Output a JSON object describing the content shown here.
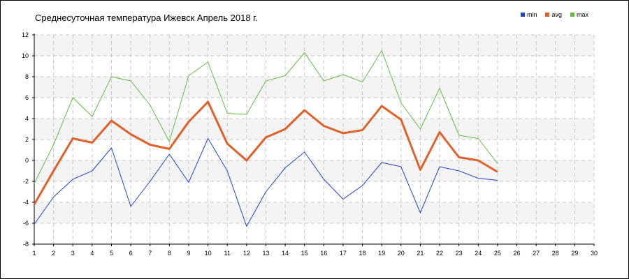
{
  "chart_data": {
    "type": "line",
    "title": "Среднесуточная температура Ижевск  Апрель 2018 г.",
    "xlabel": "",
    "ylabel": "",
    "xlim": [
      1,
      30
    ],
    "ylim": [
      -8,
      12
    ],
    "x_ticks": [
      1,
      2,
      3,
      4,
      5,
      6,
      7,
      8,
      9,
      10,
      11,
      12,
      13,
      14,
      15,
      16,
      17,
      18,
      19,
      20,
      21,
      22,
      23,
      24,
      25,
      26,
      27,
      28,
      29,
      30
    ],
    "y_ticks": [
      -8,
      -6,
      -4,
      -2,
      0,
      2,
      4,
      6,
      8,
      10,
      12
    ],
    "grid": true,
    "legend_position": "top-right",
    "x": [
      1,
      2,
      3,
      4,
      5,
      6,
      7,
      8,
      9,
      10,
      11,
      12,
      13,
      14,
      15,
      16,
      17,
      18,
      19,
      20,
      21,
      22,
      23,
      24,
      25
    ],
    "series": [
      {
        "name": "min",
        "color": "#2244cc",
        "values": [
          -6.1,
          -3.5,
          -1.8,
          -1.0,
          1.2,
          -4.4,
          -2.0,
          0.6,
          -2.1,
          2.1,
          -1.0,
          -6.3,
          -3.0,
          -0.7,
          0.8,
          -1.8,
          -3.7,
          -2.4,
          -0.2,
          -0.6,
          -5.0,
          -0.6,
          -1.0,
          -1.7,
          -1.9
        ]
      },
      {
        "name": "avg",
        "color": "#e0602a",
        "values": [
          -4.2,
          -1.0,
          2.1,
          1.7,
          3.8,
          2.5,
          1.5,
          1.1,
          3.7,
          5.6,
          1.6,
          0.0,
          2.2,
          3.0,
          4.8,
          3.3,
          2.6,
          2.9,
          5.2,
          3.9,
          -0.9,
          2.7,
          0.3,
          0.0,
          -1.1
        ]
      },
      {
        "name": "max",
        "color": "#66bb44",
        "values": [
          -2.2,
          1.5,
          6.0,
          4.2,
          8.0,
          7.6,
          5.3,
          1.8,
          8.1,
          9.4,
          4.5,
          4.4,
          7.6,
          8.1,
          10.3,
          7.6,
          8.2,
          7.5,
          10.5,
          5.5,
          3.0,
          6.9,
          2.4,
          2.1,
          -0.3
        ]
      }
    ]
  }
}
